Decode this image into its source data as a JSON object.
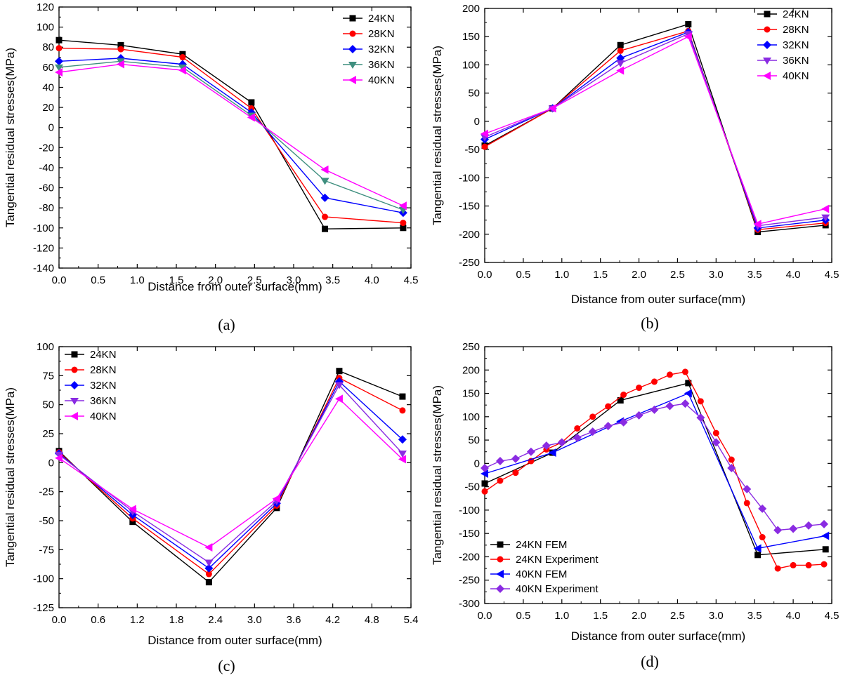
{
  "chart_data": [
    {
      "type": "line",
      "panel_label": "(a)",
      "title": "",
      "xlabel": "Distance from outer surface(mm)",
      "ylabel": "Tangential residual stresses(MPa)",
      "xlim": [
        0,
        4.5
      ],
      "ylim": [
        -140,
        120
      ],
      "xticks": [
        0.0,
        0.5,
        1.0,
        1.5,
        2.0,
        2.5,
        3.0,
        3.5,
        4.0,
        4.5
      ],
      "yticks": [
        -140,
        -120,
        -100,
        -80,
        -60,
        -40,
        -20,
        0,
        20,
        40,
        60,
        80,
        100,
        120
      ],
      "xtick_labels": [
        "0.0",
        "0.5",
        "1.0",
        "1.5",
        "2.0",
        "2.5",
        "3.0",
        "3.5",
        "4.0",
        "4.5"
      ],
      "ytick_labels": [
        "-140",
        "-120",
        "-100",
        "-80",
        "-60",
        "-40",
        "-20",
        "0",
        "20",
        "40",
        "60",
        "80",
        "100",
        "120"
      ],
      "legend_position": "top-right",
      "series": [
        {
          "name": "24KN",
          "color": "#000000",
          "marker": "square",
          "x": [
            0.0,
            0.79,
            1.58,
            2.46,
            3.4,
            4.4
          ],
          "y": [
            87,
            82,
            73,
            25,
            -101,
            -100
          ]
        },
        {
          "name": "28KN",
          "color": "#ff0000",
          "marker": "circle",
          "x": [
            0.0,
            0.79,
            1.58,
            2.46,
            3.4,
            4.4
          ],
          "y": [
            79,
            78,
            70,
            19,
            -89,
            -95
          ]
        },
        {
          "name": "32KN",
          "color": "#0000ff",
          "marker": "diamond",
          "x": [
            0.0,
            0.79,
            1.58,
            2.46,
            3.4,
            4.4
          ],
          "y": [
            66,
            69,
            63,
            15,
            -70,
            -85
          ]
        },
        {
          "name": "36KN",
          "color": "#3f8f7f",
          "marker": "triangle-down",
          "x": [
            0.0,
            0.79,
            1.58,
            2.46,
            3.4,
            4.4
          ],
          "y": [
            60,
            66,
            60,
            12,
            -53,
            -82
          ]
        },
        {
          "name": "40KN",
          "color": "#ff00ff",
          "marker": "triangle-left",
          "x": [
            0.0,
            0.79,
            1.58,
            2.46,
            3.4,
            4.4
          ],
          "y": [
            55,
            63,
            57,
            10,
            -42,
            -78
          ]
        }
      ]
    },
    {
      "type": "line",
      "panel_label": "(b)",
      "title": "",
      "xlabel": "Distance from outer surface(mm)",
      "ylabel": "Tangential residual stresses(MPa)",
      "xlim": [
        0,
        4.5
      ],
      "ylim": [
        -250,
        200
      ],
      "xticks": [
        0.0,
        0.5,
        1.0,
        1.5,
        2.0,
        2.5,
        3.0,
        3.5,
        4.0,
        4.5
      ],
      "yticks": [
        -250,
        -200,
        -150,
        -100,
        -50,
        0,
        50,
        100,
        150,
        200
      ],
      "xtick_labels": [
        "0.0",
        "0.5",
        "1.0",
        "1.5",
        "2.0",
        "2.5",
        "3.0",
        "3.5",
        "4.0",
        "4.5"
      ],
      "ytick_labels": [
        "-250",
        "-200",
        "-150",
        "-100",
        "-50",
        "0",
        "50",
        "100",
        "150",
        "200"
      ],
      "legend_position": "top-right",
      "series": [
        {
          "name": "24KN",
          "color": "#000000",
          "marker": "square",
          "x": [
            0.0,
            0.88,
            1.76,
            2.64,
            3.54,
            4.42
          ],
          "y": [
            -43,
            23,
            135,
            172,
            -196,
            -184
          ]
        },
        {
          "name": "28KN",
          "color": "#ff0000",
          "marker": "circle",
          "x": [
            0.0,
            0.88,
            1.76,
            2.64,
            3.54,
            4.42
          ],
          "y": [
            -45,
            23,
            125,
            160,
            -192,
            -180
          ]
        },
        {
          "name": "32KN",
          "color": "#0000ff",
          "marker": "diamond",
          "x": [
            0.0,
            0.88,
            1.76,
            2.64,
            3.54,
            4.42
          ],
          "y": [
            -32,
            23,
            112,
            158,
            -189,
            -175
          ]
        },
        {
          "name": "36KN",
          "color": "#8a2be2",
          "marker": "triangle-down",
          "x": [
            0.0,
            0.88,
            1.76,
            2.64,
            3.54,
            4.42
          ],
          "y": [
            -28,
            23,
            103,
            155,
            -185,
            -170
          ]
        },
        {
          "name": "40KN",
          "color": "#ff00ff",
          "marker": "triangle-left",
          "x": [
            0.0,
            0.88,
            1.76,
            2.64,
            3.54,
            4.42
          ],
          "y": [
            -22,
            23,
            90,
            150,
            -182,
            -155
          ]
        }
      ]
    },
    {
      "type": "line",
      "panel_label": "(c)",
      "title": "",
      "xlabel": "Distance from outer surface(mm)",
      "ylabel": "Tangential residual stresses(MPa)",
      "xlim": [
        0,
        5.4
      ],
      "ylim": [
        -125,
        100
      ],
      "xticks": [
        0.0,
        0.6,
        1.2,
        1.8,
        2.4,
        3.0,
        3.6,
        4.2,
        4.8,
        5.4
      ],
      "yticks": [
        -125,
        -100,
        -75,
        -50,
        -25,
        0,
        25,
        50,
        75,
        100
      ],
      "xtick_labels": [
        "0.0",
        "0.6",
        "1.2",
        "1.8",
        "2.4",
        "3.0",
        "3.6",
        "4.2",
        "4.8",
        "5.4"
      ],
      "ytick_labels": [
        "-125",
        "-100",
        "-75",
        "-50",
        "-25",
        "0",
        "25",
        "50",
        "75",
        "100"
      ],
      "legend_position": "top-left",
      "series": [
        {
          "name": "24KN",
          "color": "#000000",
          "marker": "square",
          "x": [
            0.0,
            1.13,
            2.3,
            3.34,
            4.3,
            5.27
          ],
          "y": [
            10,
            -51,
            -103,
            -39,
            79,
            57
          ]
        },
        {
          "name": "28KN",
          "color": "#ff0000",
          "marker": "circle",
          "x": [
            0.0,
            1.13,
            2.3,
            3.34,
            4.3,
            5.27
          ],
          "y": [
            9,
            -48,
            -96,
            -37,
            73,
            45
          ]
        },
        {
          "name": "32KN",
          "color": "#0000ff",
          "marker": "diamond",
          "x": [
            0.0,
            1.13,
            2.3,
            3.34,
            4.3,
            5.27
          ],
          "y": [
            8,
            -45,
            -91,
            -35,
            70,
            20
          ]
        },
        {
          "name": "36KN",
          "color": "#8a2be2",
          "marker": "triangle-down",
          "x": [
            0.0,
            1.13,
            2.3,
            3.34,
            4.3,
            5.27
          ],
          "y": [
            7,
            -42,
            -86,
            -33,
            67,
            8
          ]
        },
        {
          "name": "40KN",
          "color": "#ff00ff",
          "marker": "triangle-left",
          "x": [
            0.0,
            1.13,
            2.3,
            3.34,
            4.3,
            5.27
          ],
          "y": [
            4,
            -40,
            -73,
            -31,
            55,
            3
          ]
        }
      ]
    },
    {
      "type": "line",
      "panel_label": "(d)",
      "title": "",
      "xlabel": "Distance from outer surface(mm)",
      "ylabel": "Tangential residual stresses(MPa)",
      "xlim": [
        0,
        4.5
      ],
      "ylim": [
        -300,
        250
      ],
      "xticks": [
        0.0,
        0.5,
        1.0,
        1.5,
        2.0,
        2.5,
        3.0,
        3.5,
        4.0,
        4.5
      ],
      "yticks": [
        -300,
        -250,
        -200,
        -150,
        -100,
        -50,
        0,
        50,
        100,
        150,
        200,
        250
      ],
      "xtick_labels": [
        "0.0",
        "0.5",
        "1.0",
        "1.5",
        "2.0",
        "2.5",
        "3.0",
        "3.5",
        "4.0",
        "4.5"
      ],
      "ytick_labels": [
        "-300",
        "-250",
        "-200",
        "-150",
        "-100",
        "-50",
        "0",
        "50",
        "100",
        "150",
        "200",
        "250"
      ],
      "legend_position": "bottom-left",
      "series": [
        {
          "name": "24KN FEM",
          "color": "#000000",
          "marker": "square",
          "x": [
            0.0,
            0.88,
            1.76,
            2.64,
            3.54,
            4.42
          ],
          "y": [
            -43,
            23,
            135,
            172,
            -196,
            -184
          ]
        },
        {
          "name": "24KN Experiment",
          "color": "#ff0000",
          "marker": "circle",
          "x": [
            0.0,
            0.2,
            0.4,
            0.6,
            0.8,
            1.0,
            1.2,
            1.4,
            1.6,
            1.8,
            2.0,
            2.2,
            2.4,
            2.6,
            2.8,
            3.0,
            3.2,
            3.4,
            3.6,
            3.8,
            4.0,
            4.2,
            4.4
          ],
          "y": [
            -60,
            -37,
            -20,
            5,
            30,
            45,
            75,
            100,
            122,
            147,
            162,
            175,
            190,
            196,
            133,
            65,
            8,
            -85,
            -158,
            -225,
            -218,
            -218,
            -216
          ]
        },
        {
          "name": "40KN FEM",
          "color": "#0000ff",
          "marker": "triangle-left",
          "x": [
            0.0,
            0.88,
            1.76,
            2.64,
            3.54,
            4.42
          ],
          "y": [
            -22,
            23,
            90,
            150,
            -182,
            -155
          ]
        },
        {
          "name": "40KN Experiment",
          "color": "#8a2be2",
          "marker": "diamond",
          "x": [
            0.0,
            0.2,
            0.4,
            0.6,
            0.8,
            1.0,
            1.2,
            1.4,
            1.6,
            1.8,
            2.0,
            2.2,
            2.4,
            2.6,
            2.8,
            3.0,
            3.2,
            3.4,
            3.6,
            3.8,
            4.0,
            4.2,
            4.4
          ],
          "y": [
            -10,
            5,
            10,
            25,
            38,
            45,
            55,
            68,
            80,
            88,
            103,
            115,
            123,
            128,
            98,
            45,
            -10,
            -55,
            -97,
            -143,
            -140,
            -133,
            -130
          ]
        }
      ]
    }
  ]
}
